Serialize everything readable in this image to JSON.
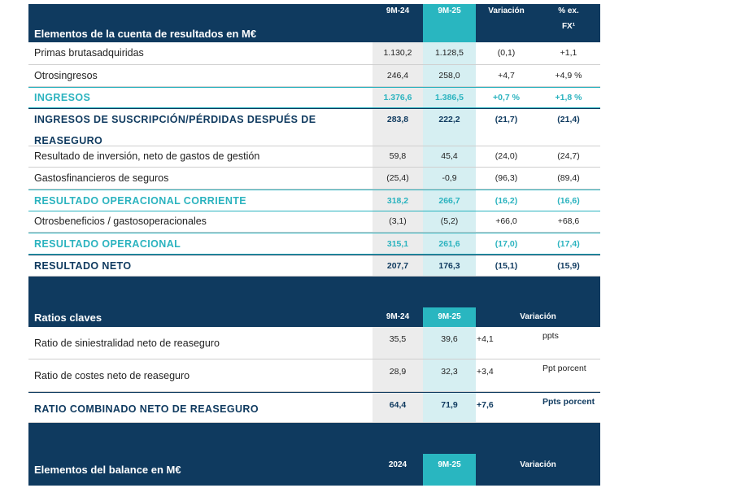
{
  "tables": [
    {
      "title": "Elementos de la cuenta de resultados en M€",
      "columns": [
        "9M-24",
        "9M-25",
        "Variación",
        "% ex. FX¹"
      ],
      "rows": [
        {
          "label": "Primas brutasadquiridas",
          "cells": [
            "1.130,2",
            "1.128,5",
            "(0,1)",
            "+1,1"
          ]
        },
        {
          "label": "Otrosingresos",
          "cells": [
            "246,4",
            "258,0",
            "+4,7",
            "+4,9 %"
          ]
        },
        {
          "label": "INGRESOS",
          "cells": [
            "1.376,6",
            "1.386,5",
            "+0,7 %",
            "+1,8 %"
          ],
          "color": "#2bb3bf"
        },
        {
          "label": "INGRESOS DE SUSCRIPCIÓN/PÉRDIDAS DESPUÉS DE REASEGURO",
          "cells": [
            "283,8",
            "222,2",
            "(21,7)",
            "(21,4)"
          ],
          "color": "#0f3a5f"
        },
        {
          "label": "Resultado de inversión, neto de gastos de gestión",
          "cells": [
            "59,8",
            "45,4",
            "(24,0)",
            "(24,7)"
          ]
        },
        {
          "label": "Gastosfinancieros de seguros",
          "cells": [
            "(25,4)",
            "-0,9",
            "(96,3)",
            "(89,4)"
          ]
        },
        {
          "label": "RESULTADO OPERACIONAL CORRIENTE",
          "cells": [
            "318,2",
            "266,7",
            "(16,2)",
            "(16,6)"
          ],
          "color": "#2bb3bf"
        },
        {
          "label": "Otrosbeneficios / gastosoperacionales",
          "cells": [
            "(3,1)",
            "(5,2)",
            "+66,0",
            "+68,6"
          ]
        },
        {
          "label": "RESULTADO OPERACIONAL",
          "cells": [
            "315,1",
            "261,6",
            "(17,0)",
            "(17,4)"
          ],
          "color": "#2bb3bf"
        },
        {
          "label": "RESULTADO NETO",
          "cells": [
            "207,7",
            "176,3",
            "(15,1)",
            "(15,9)"
          ],
          "color": "#0f3a5f"
        }
      ]
    },
    {
      "title": "Ratios claves",
      "columns": [
        "9M-24",
        "9M-25",
        "Variación"
      ],
      "rows": [
        {
          "label": "Ratio de siniestralidad neto de reaseguro",
          "cells": [
            "35,5",
            "39,6",
            "+4,1",
            "ppts"
          ]
        },
        {
          "label": "Ratio de costes neto de reaseguro",
          "cells": [
            "28,9",
            "32,3",
            "+3,4",
            "Ppt porcent"
          ]
        },
        {
          "label": "RATIO COMBINADO NETO DE REASEGURO",
          "cells": [
            "64,4",
            "71,9",
            "+7,6",
            "Ppts porcent"
          ],
          "color": "#0f3a5f"
        }
      ]
    },
    {
      "title": "Elementos del balance en M€",
      "columns": [
        "2024",
        "9M-25",
        "Variación"
      ],
      "rows": []
    }
  ]
}
